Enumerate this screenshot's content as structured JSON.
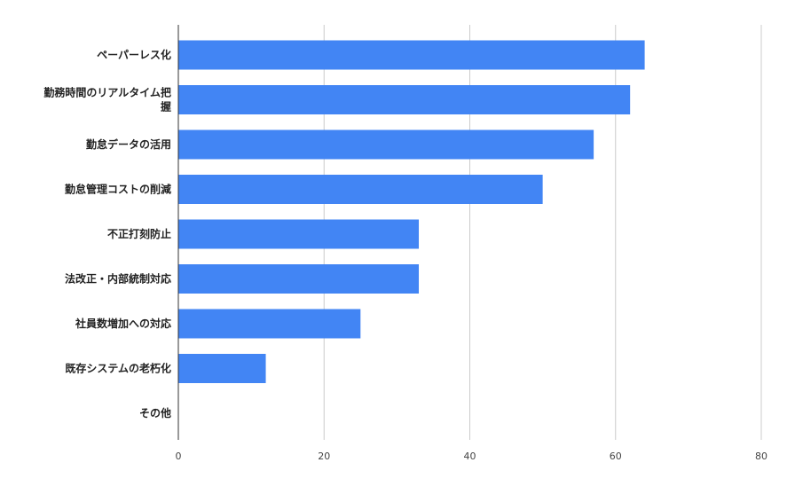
{
  "chart_data": {
    "type": "bar",
    "orientation": "horizontal",
    "title": "",
    "xlabel": "",
    "ylabel": "",
    "categories": [
      [
        "ペーパーレス化"
      ],
      [
        "勤務時間のリアルタイム把",
        "握"
      ],
      [
        "勤怠データの活用"
      ],
      [
        "勤怠管理コストの削減"
      ],
      [
        "不正打刻防止"
      ],
      [
        "法改正・内部統制対応"
      ],
      [
        "社員数増加への対応"
      ],
      [
        "既存システムの老朽化"
      ],
      [
        "その他"
      ]
    ],
    "values": [
      64,
      62,
      57,
      50,
      33,
      33,
      25,
      12,
      0
    ],
    "xlim": [
      0,
      80
    ],
    "xticks": [
      "0",
      "20",
      "40",
      "60",
      "80"
    ],
    "xtick_values": [
      0,
      20,
      40,
      60,
      80
    ],
    "grid": "vertical",
    "legend": "none",
    "bar_color": "#4285f4",
    "grid_color": "#cccccc",
    "axis_color": "#333333"
  }
}
